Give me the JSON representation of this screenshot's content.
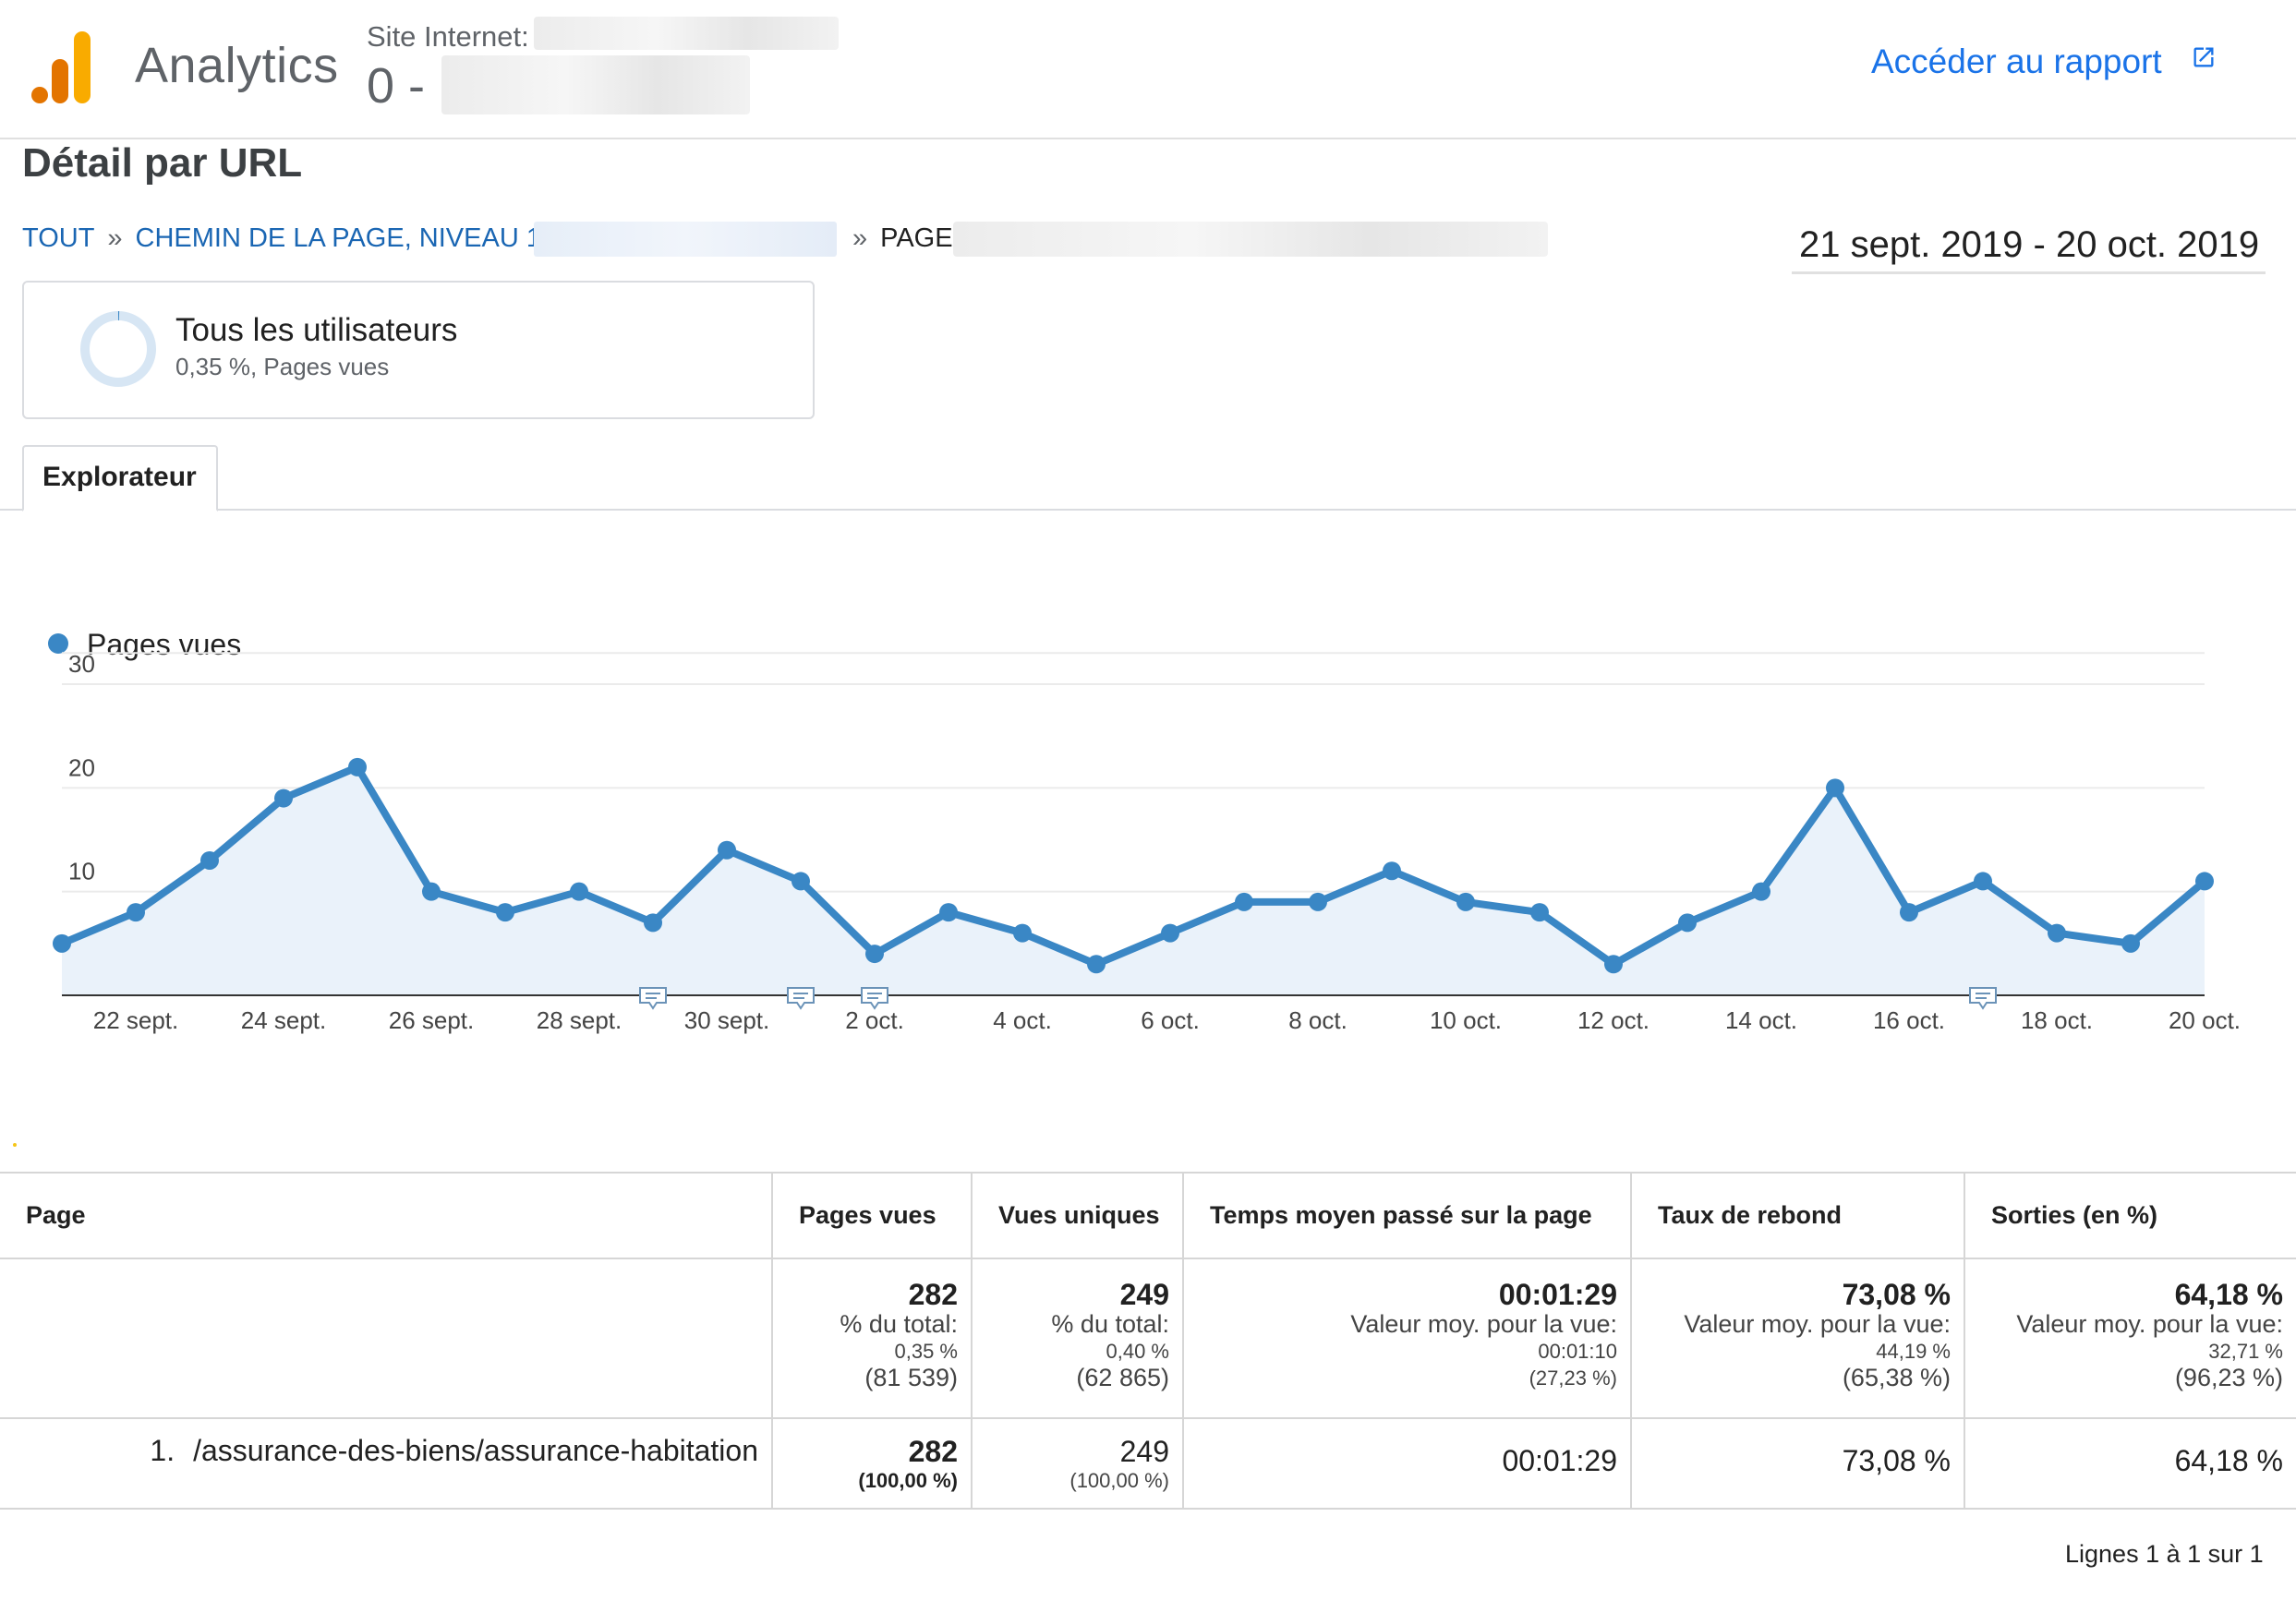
{
  "header": {
    "brand": "Analytics",
    "site_label": "Site Internet:",
    "site_name": "0 -",
    "report_link": "Accéder au rapport",
    "logo_icon": "analytics-logo-icon",
    "logo_colors": [
      "#e37400",
      "#f9ab00",
      "#f57c00"
    ],
    "accent_color": "#1a73e8"
  },
  "page_title": "Détail par URL",
  "breadcrumb": {
    "all": "TOUT",
    "sep": "»",
    "level1": "CHEMIN DE LA PAGE, NIVEAU 1:",
    "page": "PAGE:"
  },
  "date_range": "21 sept. 2019 - 20 oct. 2019",
  "segment": {
    "name": "Tous les utilisateurs",
    "detail": "0,35 %, Pages vues",
    "share": 0.0035
  },
  "tabs": [
    {
      "label": "Explorateur",
      "active": true
    }
  ],
  "chart_data": {
    "type": "area",
    "title": "",
    "legend": [
      "Pages vues"
    ],
    "legend_position": "top-left",
    "grid": true,
    "ylim": [
      0,
      30
    ],
    "y_ticks": [
      "10",
      "20",
      "30"
    ],
    "x_tick_labels": [
      "22 sept.",
      "24 sept.",
      "26 sept.",
      "28 sept.",
      "30 sept.",
      "2 oct.",
      "4 oct.",
      "6 oct.",
      "8 oct.",
      "10 oct.",
      "12 oct.",
      "14 oct.",
      "16 oct.",
      "18 oct.",
      "20 oct."
    ],
    "x_tick_indices": [
      1,
      3,
      5,
      7,
      9,
      11,
      13,
      15,
      17,
      19,
      21,
      23,
      25,
      27,
      29
    ],
    "series": [
      {
        "name": "Pages vues",
        "color": "#3a87c5",
        "fill": "#eaf2fa",
        "values": [
          5,
          8,
          13,
          19,
          22,
          10,
          8,
          10,
          7,
          14,
          11,
          4,
          8,
          6,
          3,
          6,
          9,
          9,
          12,
          9,
          8,
          3,
          7,
          10,
          20,
          8,
          11,
          6,
          5,
          11
        ]
      }
    ],
    "annotation_icon": "annotation-icon",
    "annotation_indices": [
      8,
      10,
      11,
      26
    ]
  },
  "table": {
    "columns": [
      "Page",
      "Pages vues",
      "Vues uniques",
      "Temps moyen passé sur la page",
      "Taux de rebond",
      "Sorties (en %)"
    ],
    "totals": [
      {
        "main": "282",
        "sub": "% du total:",
        "small1": "0,35 %",
        "small2": "(81 539)"
      },
      {
        "main": "249",
        "sub": "% du total:",
        "small1": "0,40 %",
        "small2": "(62 865)"
      },
      {
        "main": "00:01:29",
        "sub": "Valeur moy. pour la vue:",
        "small1": "00:01:10",
        "small2": "(27,23 %)"
      },
      {
        "main": "73,08 %",
        "sub": "Valeur moy. pour la vue:",
        "small1": "44,19 %",
        "small2": "(65,38 %)"
      },
      {
        "main": "64,18 %",
        "sub": "Valeur moy. pour la vue:",
        "small1": "32,71 %",
        "small2": "(96,23 %)"
      }
    ],
    "rows": [
      {
        "rank": "1.",
        "page": "/assurance-des-biens/assurance-habitation",
        "pageviews": "282",
        "pageviews_pct": "(100,00 %)",
        "unique": "249",
        "unique_pct": "(100,00 %)",
        "avg_time": "00:01:29",
        "bounce": "73,08 %",
        "exits": "64,18 %"
      }
    ]
  },
  "pagination": "Lignes 1 à 1 sur 1"
}
